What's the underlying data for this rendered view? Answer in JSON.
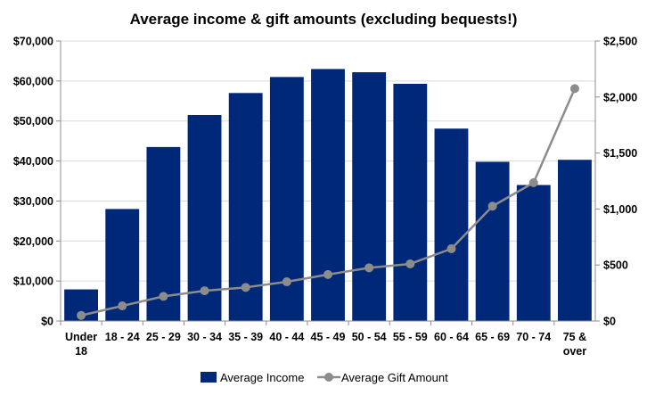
{
  "chart_data": {
    "type": "bar",
    "title": "Average income & gift amounts (excluding bequests!)",
    "categories": [
      [
        "Under",
        "18"
      ],
      [
        "18 - 24"
      ],
      [
        "25 - 29"
      ],
      [
        "30 - 34"
      ],
      [
        "35 - 39"
      ],
      [
        "40 - 44"
      ],
      [
        "45 - 49"
      ],
      [
        "50 - 54"
      ],
      [
        "55 - 59"
      ],
      [
        "60 - 64"
      ],
      [
        "65 - 69"
      ],
      [
        "70 - 74"
      ],
      [
        "75 &",
        "over"
      ]
    ],
    "series": [
      {
        "name": "Average Income",
        "type": "bar",
        "axis": "left",
        "color": "#002878",
        "values": [
          7900,
          28000,
          43500,
          51500,
          57000,
          61000,
          63000,
          62200,
          59300,
          48100,
          39800,
          34000,
          40300
        ]
      },
      {
        "name": "Average Gift Amount",
        "type": "line",
        "axis": "right",
        "color": "#8c8c8c",
        "values": [
          50,
          135,
          220,
          270,
          300,
          350,
          415,
          475,
          510,
          645,
          1025,
          1235,
          2075
        ]
      }
    ],
    "y_left": {
      "min": 0,
      "max": 70000,
      "step": 10000,
      "tick_labels": [
        "$0",
        "$10,000",
        "$20,000",
        "$30,000",
        "$40,000",
        "$50,000",
        "$60,000",
        "$70,000"
      ]
    },
    "y_right": {
      "min": 0,
      "max": 2500,
      "step": 500,
      "tick_labels": [
        "$0",
        "$500",
        "$1,000",
        "$1,500",
        "$2,000",
        "$2,500"
      ]
    },
    "grid": true,
    "legend": "bottom"
  }
}
